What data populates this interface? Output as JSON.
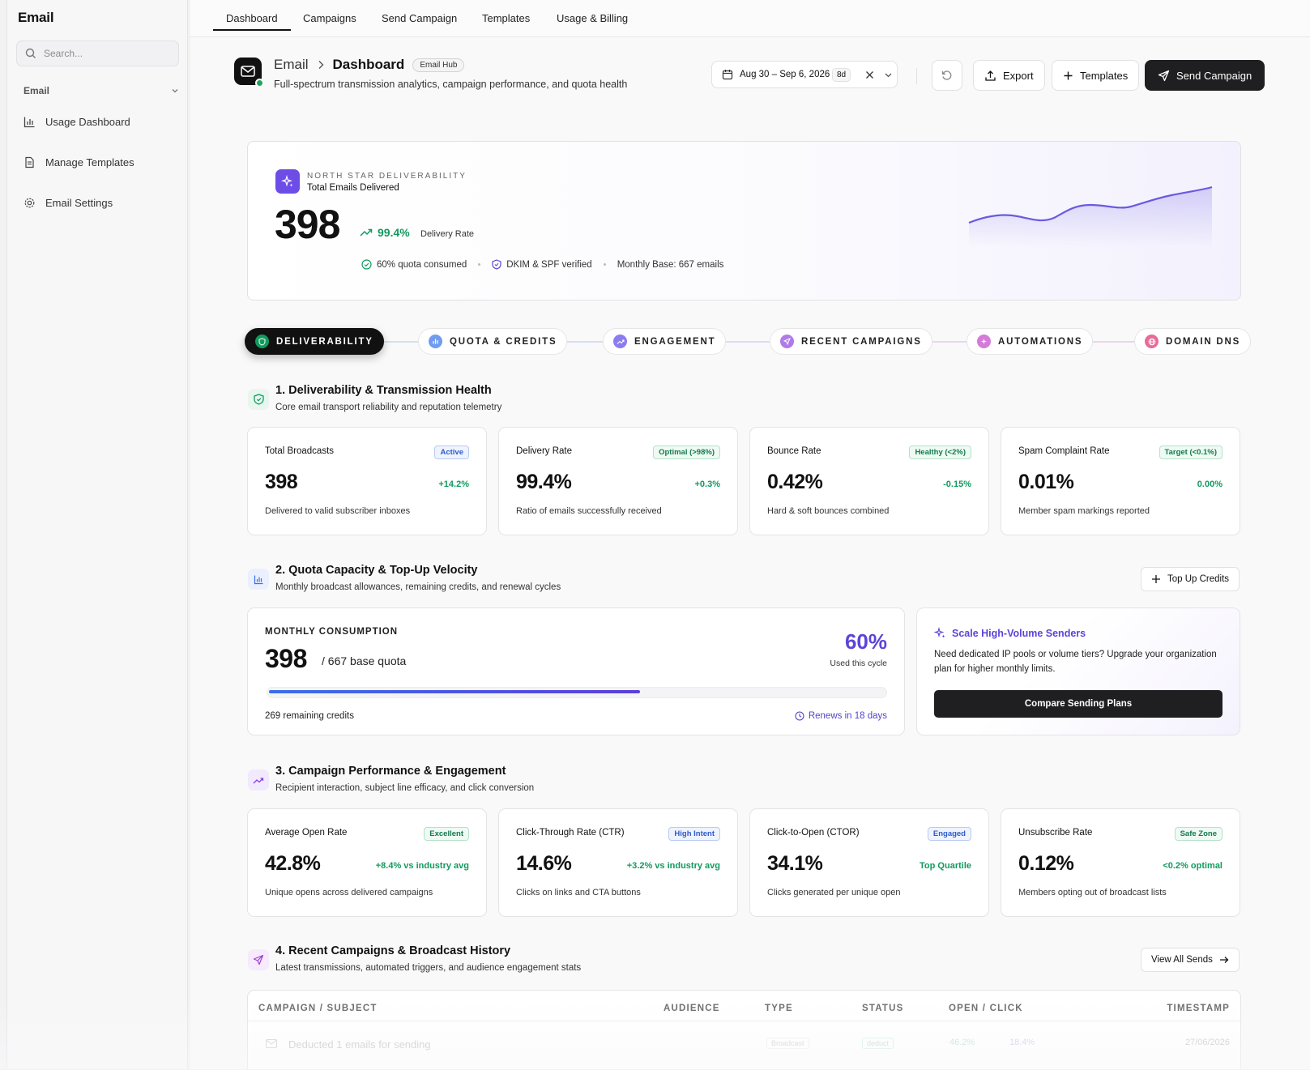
{
  "sidebar": {
    "title": "Email",
    "search_placeholder": "Search...",
    "section_label": "Email",
    "items": [
      {
        "label": "Usage Dashboard",
        "icon": "bar-chart-icon"
      },
      {
        "label": "Manage Templates",
        "icon": "document-icon"
      },
      {
        "label": "Email Settings",
        "icon": "gear-icon"
      }
    ]
  },
  "topnav": {
    "tabs": [
      "Dashboard",
      "Campaigns",
      "Send Campaign",
      "Templates",
      "Usage & Billing"
    ],
    "active_tab": "Dashboard"
  },
  "header": {
    "breadcrumb_root": "Email",
    "breadcrumb_current": "Dashboard",
    "badge": "Email Hub",
    "subtitle": "Full-spectrum transmission analytics, campaign performance, and quota health",
    "date_range": "Aug 30 – Sep 6, 2026",
    "days": "8d",
    "export_label": "Export",
    "templates_label": "Templates",
    "send_label": "Send Campaign"
  },
  "hero": {
    "eyebrow": "NORTH STAR DELIVERABILITY",
    "label": "Total Emails Delivered",
    "value": "398",
    "rate": "99.4%",
    "rate_label": "Delivery Rate",
    "meta": [
      "60% quota consumed",
      "DKIM & SPF verified",
      "Monthly Base: 667 emails"
    ],
    "accent": "#6d4de6"
  },
  "steps": [
    {
      "label": "DELIVERABILITY",
      "color": "#119a5e"
    },
    {
      "label": "QUOTA & CREDITS",
      "color": "#5b8def"
    },
    {
      "label": "ENGAGEMENT",
      "color": "#8b7cf0"
    },
    {
      "label": "RECENT CAMPAIGNS",
      "color": "#b07be8"
    },
    {
      "label": "AUTOMATIONS",
      "color": "#d47bd8"
    },
    {
      "label": "DOMAIN DNS",
      "color": "#e86a9a"
    }
  ],
  "sections": {
    "deliverability": {
      "title": "1. Deliverability & Transmission Health",
      "subtitle": "Core email transport reliability and reputation telemetry",
      "cards": [
        {
          "label": "Total Broadcasts",
          "badge": "Active",
          "value": "398",
          "delta": "+14.2%",
          "desc": "Delivered to valid subscriber inboxes"
        },
        {
          "label": "Delivery Rate",
          "badge": "Optimal (>98%)",
          "value": "99.4%",
          "delta": "+0.3%",
          "desc": "Ratio of emails successfully received"
        },
        {
          "label": "Bounce Rate",
          "badge": "Healthy (<2%)",
          "value": "0.42%",
          "delta": "-0.15%",
          "desc": "Hard & soft bounces combined"
        },
        {
          "label": "Spam Complaint Rate",
          "badge": "Target (<0.1%)",
          "value": "0.01%",
          "delta": "0.00%",
          "desc": "Member spam markings reported"
        }
      ]
    },
    "quota": {
      "title": "2. Quota Capacity & Top-Up Velocity",
      "subtitle": "Monthly broadcast allowances, remaining credits, and renewal cycles",
      "top_up_label": "Top Up Credits",
      "eyebrow": "MONTHLY CONSUMPTION",
      "used": "398",
      "of_text": "/ 667 base quota",
      "pct": "60%",
      "pct_label": "Used this cycle",
      "progress": 0.6,
      "remaining": "269 remaining credits",
      "renews": "Renews in 18 days",
      "upsell_title": "Scale High-Volume Senders",
      "upsell_body": "Need dedicated IP pools or volume tiers? Upgrade your organization plan for higher monthly limits.",
      "upsell_button": "Compare Sending Plans"
    },
    "engagement": {
      "title": "3. Campaign Performance & Engagement",
      "subtitle": "Recipient interaction, subject line efficacy, and click conversion",
      "cards": [
        {
          "label": "Average Open Rate",
          "badge": "Excellent",
          "value": "42.8%",
          "delta": "+8.4% vs industry avg",
          "desc": "Unique opens across delivered campaigns"
        },
        {
          "label": "Click-Through Rate (CTR)",
          "badge": "High Intent",
          "value": "14.6%",
          "delta": "+3.2% vs industry avg",
          "desc": "Clicks on links and CTA buttons"
        },
        {
          "label": "Click-to-Open (CTOR)",
          "badge": "Engaged",
          "value": "34.1%",
          "delta": "Top Quartile",
          "desc": "Clicks generated per unique open"
        },
        {
          "label": "Unsubscribe Rate",
          "badge": "Safe Zone",
          "value": "0.12%",
          "delta": "<0.2% optimal",
          "desc": "Members opting out of broadcast lists"
        }
      ]
    },
    "campaigns": {
      "title": "4. Recent Campaigns & Broadcast History",
      "subtitle": "Latest transmissions, automated triggers, and audience engagement stats",
      "view_all": "View All Sends",
      "columns": [
        "CAMPAIGN / SUBJECT",
        "AUDIENCE",
        "TYPE",
        "STATUS",
        "OPEN / CLICK",
        "TIMESTAMP"
      ],
      "rows": [
        {
          "subject": "Deducted 1 emails for sending",
          "type": "Broadcast",
          "status": "deduct",
          "open": "46.2%",
          "click": "18.4%",
          "timestamp": "27/06/2026"
        }
      ]
    }
  }
}
